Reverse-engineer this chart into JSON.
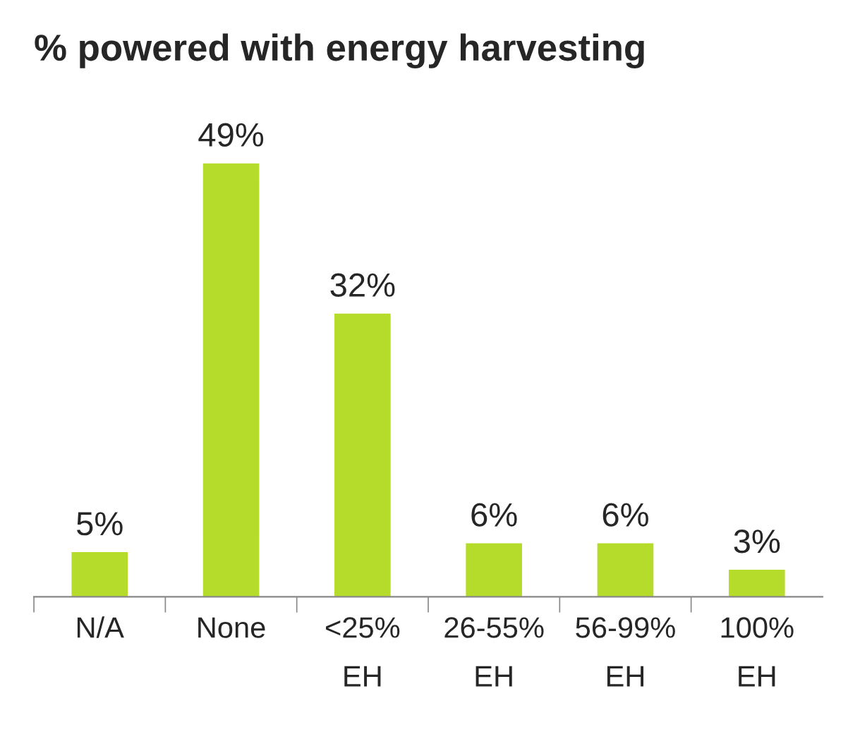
{
  "chart_data": {
    "type": "bar",
    "title": "% powered with energy harvesting",
    "categories": [
      "N/A",
      "None",
      "<25%\nEH",
      "26-55%\nEH",
      "56-99%\nEH",
      "100%\nEH"
    ],
    "values": [
      5,
      49,
      32,
      6,
      6,
      3
    ],
    "value_labels": [
      "5%",
      "49%",
      "32%",
      "6%",
      "6%",
      "3%"
    ],
    "color": "#b5dc2a",
    "grid": false,
    "legend": false
  }
}
